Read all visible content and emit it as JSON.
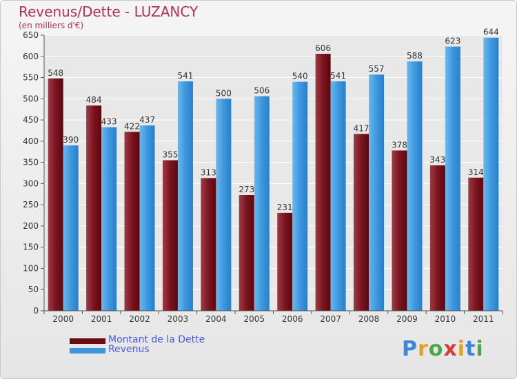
{
  "title": "Revenus/Dette - LUZANCY",
  "subtitle": "(en milliers d'€)",
  "logo_text": "Proxiti",
  "colors": {
    "debt": "#6b0a12",
    "debt_light": "#9a3a40",
    "revenue": "#2b7fc8",
    "revenue_light": "#5aaeea",
    "grid": "#ffffff",
    "plot_bg": "#e8e8e8",
    "axis_text": "#333333",
    "title": "#b1305a",
    "legend_text": "#4a59e0"
  },
  "legend": [
    {
      "label": "Montant de la Dette",
      "color": "#6b0a12"
    },
    {
      "label": "Revenus",
      "color": "#3a95dd"
    }
  ],
  "chart_data": {
    "type": "bar",
    "categories": [
      "2000",
      "2001",
      "2002",
      "2003",
      "2004",
      "2005",
      "2006",
      "2007",
      "2008",
      "2009",
      "2010",
      "2011"
    ],
    "series": [
      {
        "name": "Montant de la Dette",
        "values": [
          548,
          484,
          422,
          355,
          313,
          273,
          231,
          606,
          417,
          378,
          343,
          314
        ]
      },
      {
        "name": "Revenus",
        "values": [
          390,
          433,
          437,
          541,
          500,
          506,
          540,
          541,
          557,
          588,
          623,
          644
        ]
      }
    ],
    "ylim": [
      0,
      650
    ],
    "yticks": [
      0,
      50,
      100,
      150,
      200,
      250,
      300,
      350,
      400,
      450,
      500,
      550,
      600,
      650
    ],
    "grid": true,
    "legend_position": "bottom-left"
  }
}
